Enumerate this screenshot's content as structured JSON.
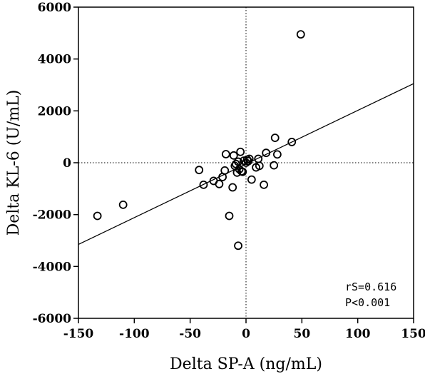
{
  "chart_data": {
    "type": "scatter",
    "title": "",
    "xlabel": "Delta SP-A (ng/mL)",
    "ylabel": "Delta KL-6 (U/mL)",
    "xlim": [
      -150,
      150
    ],
    "ylim": [
      -6000,
      6000
    ],
    "xticks": [
      -150,
      -100,
      -50,
      0,
      50,
      100,
      150
    ],
    "yticks": [
      -6000,
      -4000,
      -2000,
      0,
      2000,
      4000,
      6000
    ],
    "grid": false,
    "zero_lines": true,
    "marker": "open-circle",
    "points": [
      {
        "x": 49,
        "y": 4950
      },
      {
        "x": -133,
        "y": -2050
      },
      {
        "x": -110,
        "y": -1620
      },
      {
        "x": -42,
        "y": -280
      },
      {
        "x": -38,
        "y": -850
      },
      {
        "x": -29,
        "y": -700
      },
      {
        "x": -24,
        "y": -820
      },
      {
        "x": -21,
        "y": -550
      },
      {
        "x": -19,
        "y": -300
      },
      {
        "x": -18,
        "y": 330
      },
      {
        "x": -15,
        "y": -2050
      },
      {
        "x": -12,
        "y": -950
      },
      {
        "x": -11,
        "y": 280
      },
      {
        "x": -10,
        "y": -120
      },
      {
        "x": -9,
        "y": -50
      },
      {
        "x": -8,
        "y": -380
      },
      {
        "x": -7,
        "y": 40
      },
      {
        "x": -7,
        "y": -3200
      },
      {
        "x": -6,
        "y": -250
      },
      {
        "x": -5,
        "y": 420
      },
      {
        "x": -4,
        "y": -330
      },
      {
        "x": -3,
        "y": -350
      },
      {
        "x": -2,
        "y": 80
      },
      {
        "x": 0,
        "y": 0
      },
      {
        "x": 1,
        "y": 120
      },
      {
        "x": 2,
        "y": 60
      },
      {
        "x": 3,
        "y": 150
      },
      {
        "x": 5,
        "y": -650
      },
      {
        "x": 9,
        "y": -180
      },
      {
        "x": 11,
        "y": 150
      },
      {
        "x": 12,
        "y": -120
      },
      {
        "x": 16,
        "y": -850
      },
      {
        "x": 18,
        "y": 380
      },
      {
        "x": 25,
        "y": -100
      },
      {
        "x": 26,
        "y": 960
      },
      {
        "x": 28,
        "y": 320
      },
      {
        "x": 41,
        "y": 800
      }
    ],
    "trend_line": {
      "x": [
        -150,
        150
      ],
      "y": [
        -3150,
        3050
      ]
    },
    "annotations": {
      "rs": "rS=0.616",
      "p": "P<0.001"
    }
  }
}
